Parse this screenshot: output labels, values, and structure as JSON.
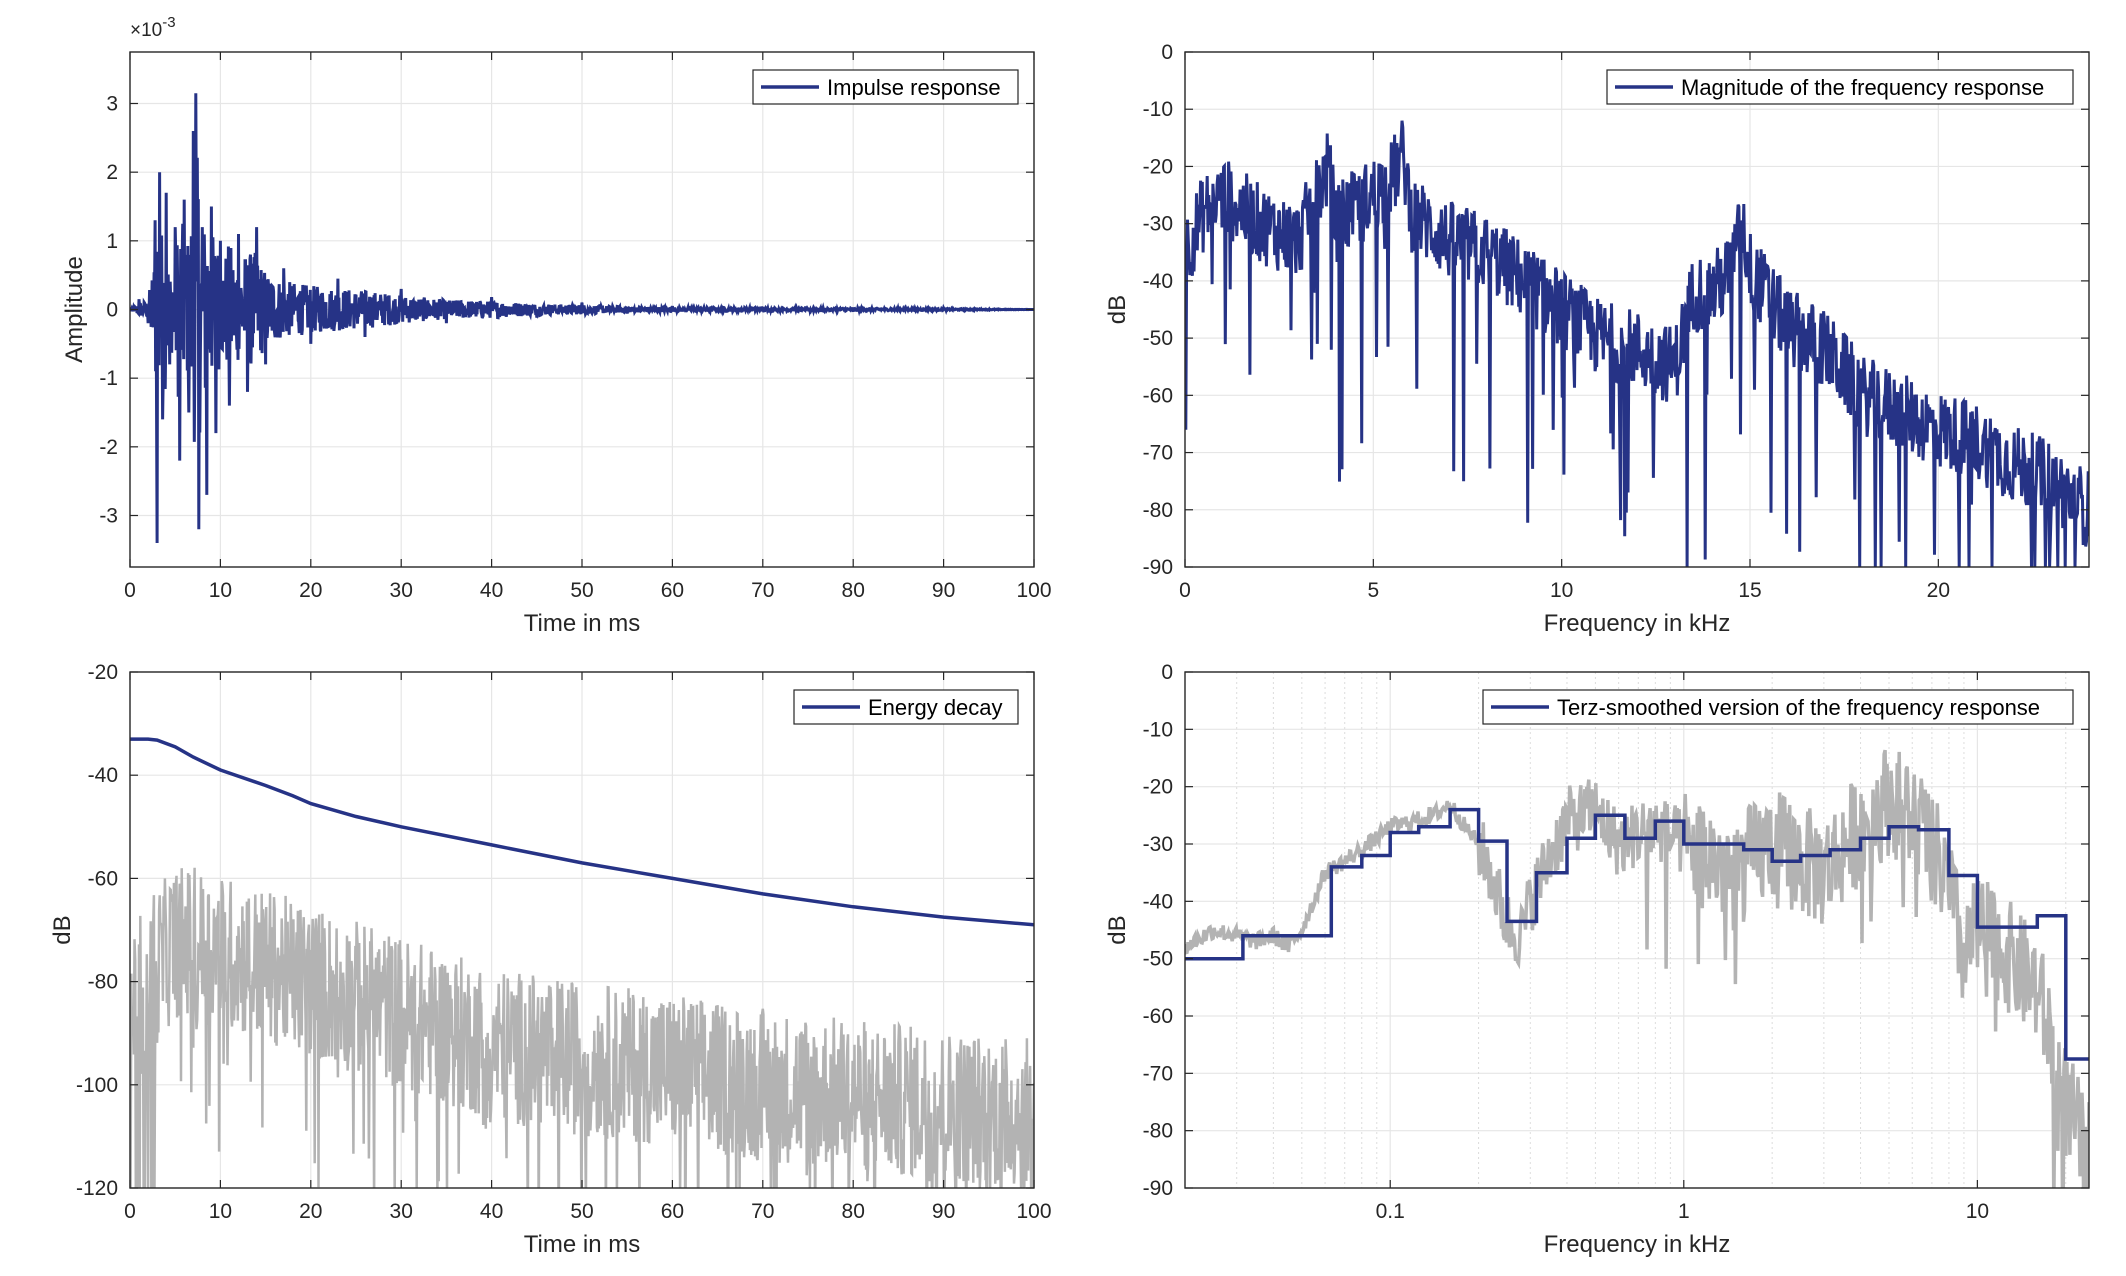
{
  "colors": {
    "series": "#263386",
    "background_trace": "#b3b3b3",
    "grid": "#e6e6e6",
    "axis": "#262626"
  },
  "chart_data": [
    {
      "id": "impulse",
      "type": "line",
      "xlabel": "Time in ms",
      "ylabel": "Amplitude",
      "exponent_label": "×10",
      "exponent_power": "-3",
      "xlim": [
        0,
        100
      ],
      "ylim": [
        -3.75,
        3.75
      ],
      "xticks": [
        0,
        10,
        20,
        30,
        40,
        50,
        60,
        70,
        80,
        90,
        100
      ],
      "yticks": [
        -3,
        -2,
        -1,
        0,
        1,
        2,
        3
      ],
      "grid": true,
      "legend_position": "top-right",
      "series": [
        {
          "name": "Impulse response",
          "x": [
            0,
            1,
            2,
            2.8,
            3,
            3.3,
            3.6,
            4,
            4.4,
            5,
            5.5,
            6,
            6.5,
            7,
            7.3,
            7.6,
            8,
            8.5,
            9,
            9.5,
            10,
            11,
            12,
            13,
            14,
            15,
            17,
            20,
            23,
            26,
            30,
            35,
            40,
            45,
            50,
            55,
            60,
            70,
            80,
            90,
            100
          ],
          "y": [
            0,
            0.15,
            -0.2,
            1.3,
            -3.4,
            2.0,
            -1.6,
            1.7,
            -0.8,
            1.2,
            -2.2,
            1.6,
            -1.5,
            2.6,
            3.15,
            -3.2,
            1.2,
            -2.7,
            1.5,
            -1.8,
            1.0,
            -1.4,
            1.1,
            -1.2,
            1.2,
            -0.8,
            0.6,
            -0.5,
            0.45,
            -0.4,
            0.3,
            -0.2,
            0.18,
            -0.12,
            0.1,
            -0.06,
            0.05,
            0.04,
            -0.03,
            0.02,
            0
          ]
        }
      ]
    },
    {
      "id": "magnitude",
      "type": "line",
      "xlabel": "Frequency in kHz",
      "ylabel": "dB",
      "xlim": [
        0,
        24
      ],
      "ylim": [
        -90,
        0
      ],
      "xticks": [
        0,
        5,
        10,
        15,
        20
      ],
      "yticks": [
        0,
        -10,
        -20,
        -30,
        -40,
        -50,
        -60,
        -70,
        -80,
        -90
      ],
      "grid": true,
      "legend_position": "top-right",
      "series": [
        {
          "name": "Magnitude of the frequency response",
          "x": [
            0,
            0.5,
            1,
            2,
            3,
            3.8,
            4,
            5,
            5.5,
            5.8,
            6,
            7,
            8,
            9,
            10,
            11,
            12,
            13,
            13.5,
            14,
            14.5,
            14.8,
            15,
            16,
            17,
            18,
            19,
            20,
            21,
            22,
            23,
            24
          ],
          "y": [
            -35,
            -28,
            -25,
            -30,
            -33,
            -20,
            -30,
            -25,
            -22,
            -18,
            -28,
            -33,
            -35,
            -40,
            -45,
            -50,
            -52,
            -55,
            -42,
            -42,
            -38,
            -30,
            -38,
            -48,
            -52,
            -60,
            -63,
            -66,
            -68,
            -72,
            -75,
            -80
          ]
        }
      ]
    },
    {
      "id": "energy",
      "type": "line",
      "xlabel": "Time in ms",
      "ylabel": "dB",
      "xlim": [
        0,
        100
      ],
      "ylim": [
        -120,
        -20
      ],
      "xticks": [
        0,
        10,
        20,
        30,
        40,
        50,
        60,
        70,
        80,
        90,
        100
      ],
      "yticks": [
        -20,
        -40,
        -60,
        -80,
        -100,
        -120
      ],
      "grid": true,
      "legend_position": "top-right",
      "series": [
        {
          "name": "Energy decay",
          "x": [
            0,
            2,
            3,
            5,
            7,
            10,
            15,
            18,
            20,
            25,
            30,
            40,
            50,
            60,
            70,
            80,
            90,
            100
          ],
          "y": [
            -33,
            -33,
            -33.2,
            -34.5,
            -36.5,
            -39,
            -42,
            -44,
            -45.5,
            -48,
            -50,
            -53.5,
            -57,
            -60,
            -63,
            -65.5,
            -67.5,
            -69
          ]
        }
      ],
      "background_trace": {
        "x": [
          0,
          5,
          10,
          20,
          30,
          40,
          50,
          60,
          70,
          80,
          90,
          100
        ],
        "y": [
          -85,
          -72,
          -74,
          -80,
          -86,
          -92,
          -95,
          -97,
          -100,
          -102,
          -104,
          -106
        ]
      }
    },
    {
      "id": "terz",
      "type": "line",
      "xlabel": "Frequency in kHz",
      "ylabel": "dB",
      "xscale": "log",
      "xlim": [
        0.02,
        24
      ],
      "ylim": [
        -90,
        0
      ],
      "xticks": [
        0.1,
        1,
        10
      ],
      "xticklabels": [
        "0.1",
        "1",
        "10"
      ],
      "yticks": [
        0,
        -10,
        -20,
        -30,
        -40,
        -50,
        -60,
        -70,
        -80,
        -90
      ],
      "grid": true,
      "legend_position": "top-right",
      "series": [
        {
          "name": "Terz-smoothed version of the frequency response",
          "x": [
            0.02,
            0.0315,
            0.04,
            0.05,
            0.063,
            0.08,
            0.1,
            0.125,
            0.16,
            0.2,
            0.25,
            0.315,
            0.4,
            0.5,
            0.63,
            0.8,
            1,
            1.25,
            1.6,
            2,
            2.5,
            3.15,
            4,
            5,
            6.3,
            8,
            10,
            12.5,
            16,
            20
          ],
          "y": [
            -50,
            -46,
            -46,
            -46,
            -34,
            -32,
            -28,
            -27,
            -24,
            -29.5,
            -43.5,
            -35,
            -29,
            -25,
            -29,
            -26,
            -30,
            -30,
            -31,
            -33,
            -32,
            -31,
            -29,
            -27,
            -27.5,
            -35.5,
            -44.5,
            -44.5,
            -42.5,
            -67.5
          ]
        }
      ],
      "background_trace": {
        "x": [
          0.02,
          0.025,
          0.03,
          0.035,
          0.04,
          0.045,
          0.05,
          0.06,
          0.07,
          0.08,
          0.09,
          0.1,
          0.12,
          0.14,
          0.16,
          0.18,
          0.2,
          0.22,
          0.25,
          0.28,
          0.3,
          0.35,
          0.4,
          0.45,
          0.5,
          0.6,
          0.7,
          0.8,
          1,
          1.5,
          2,
          3,
          4,
          5,
          6,
          7,
          8,
          9,
          10,
          12,
          14,
          16,
          18,
          20,
          24
        ],
        "y": [
          -48,
          -45,
          -46,
          -47,
          -46,
          -48,
          -45,
          -35,
          -33,
          -31,
          -29,
          -27,
          -26,
          -25,
          -23,
          -27,
          -30,
          -35,
          -44,
          -46,
          -40,
          -32,
          -26,
          -25,
          -24,
          -30,
          -28,
          -27,
          -30,
          -35,
          -30,
          -35,
          -27,
          -22,
          -25,
          -30,
          -38,
          -50,
          -45,
          -48,
          -52,
          -55,
          -65,
          -75,
          -85
        ]
      }
    }
  ]
}
